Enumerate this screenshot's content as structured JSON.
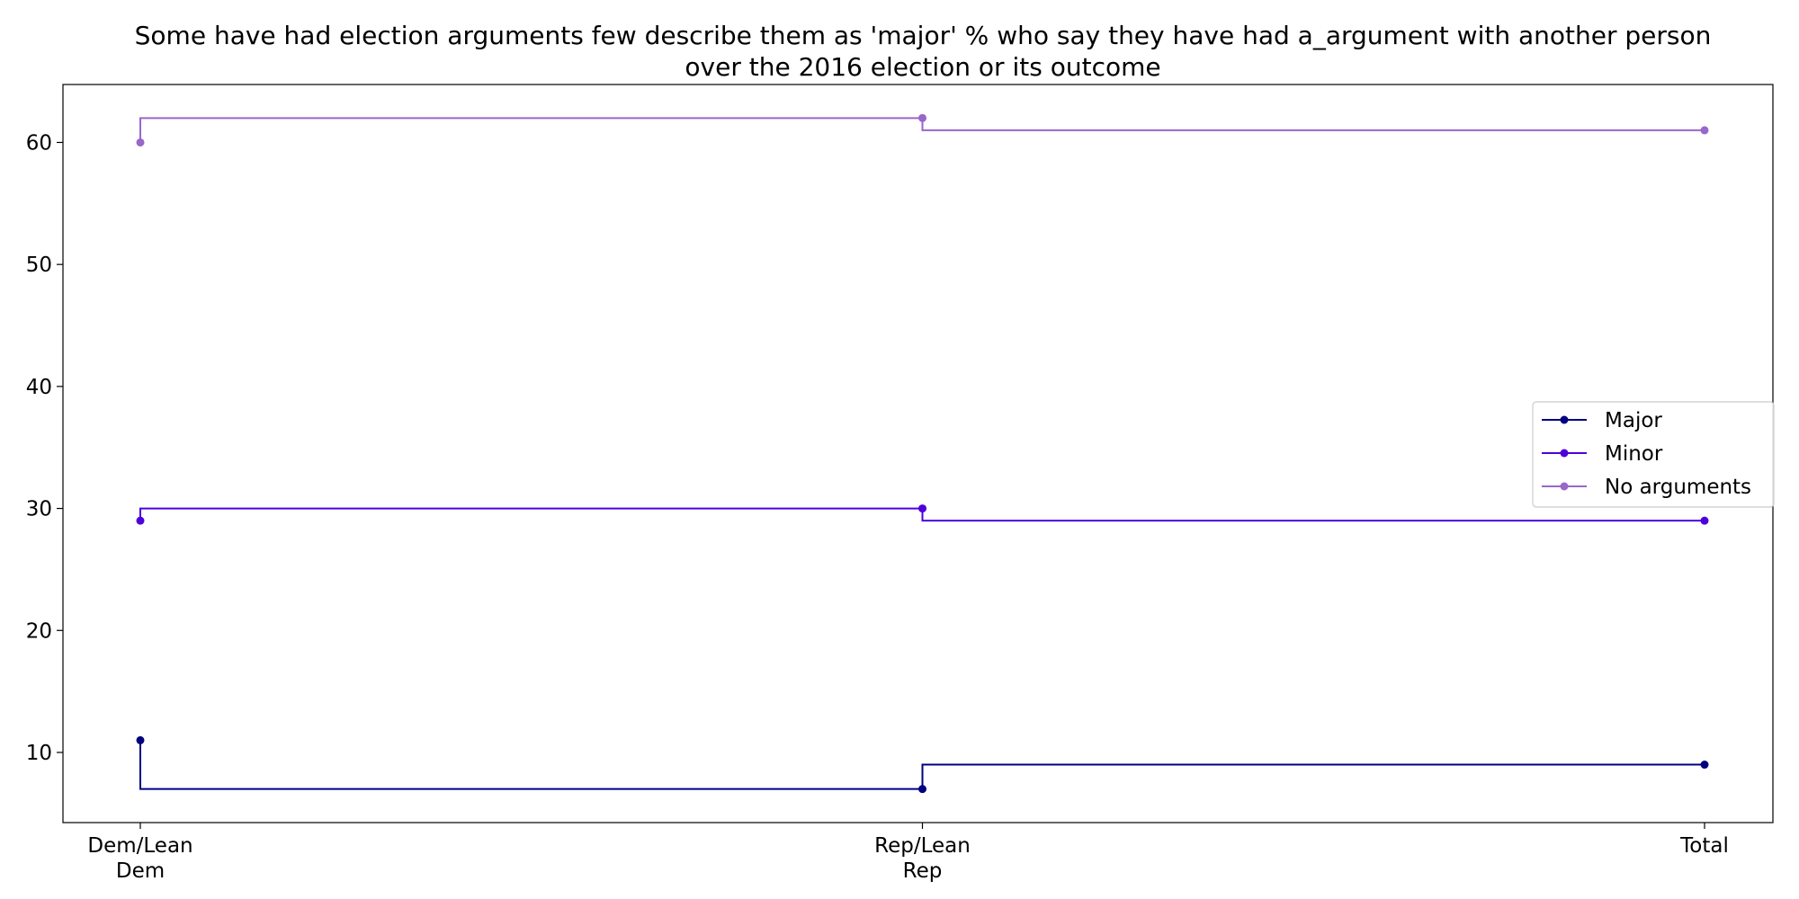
{
  "chart_data": {
    "type": "line",
    "step": "post",
    "title_lines": [
      "Some have had election arguments few describe them as 'major' % who say they have had a_argument with another person",
      "over the 2016 election or its outcome"
    ],
    "xlabel": "",
    "ylabel": "",
    "categories": [
      [
        "Dem/Lean",
        "Dem"
      ],
      [
        "Rep/Lean",
        "Rep"
      ],
      [
        "Total"
      ]
    ],
    "yticks": [
      10,
      20,
      30,
      40,
      50,
      60
    ],
    "ylim": [
      4.25,
      64.75
    ],
    "grid": false,
    "legend_position": "center-right",
    "series": [
      {
        "name": "Major",
        "color": "#00007f",
        "values": [
          11,
          7,
          9
        ]
      },
      {
        "name": "Minor",
        "color": "#4d00d9",
        "values": [
          29,
          30,
          29
        ]
      },
      {
        "name": "No arguments",
        "color": "#9966cc",
        "values": [
          60,
          62,
          61
        ]
      }
    ]
  }
}
